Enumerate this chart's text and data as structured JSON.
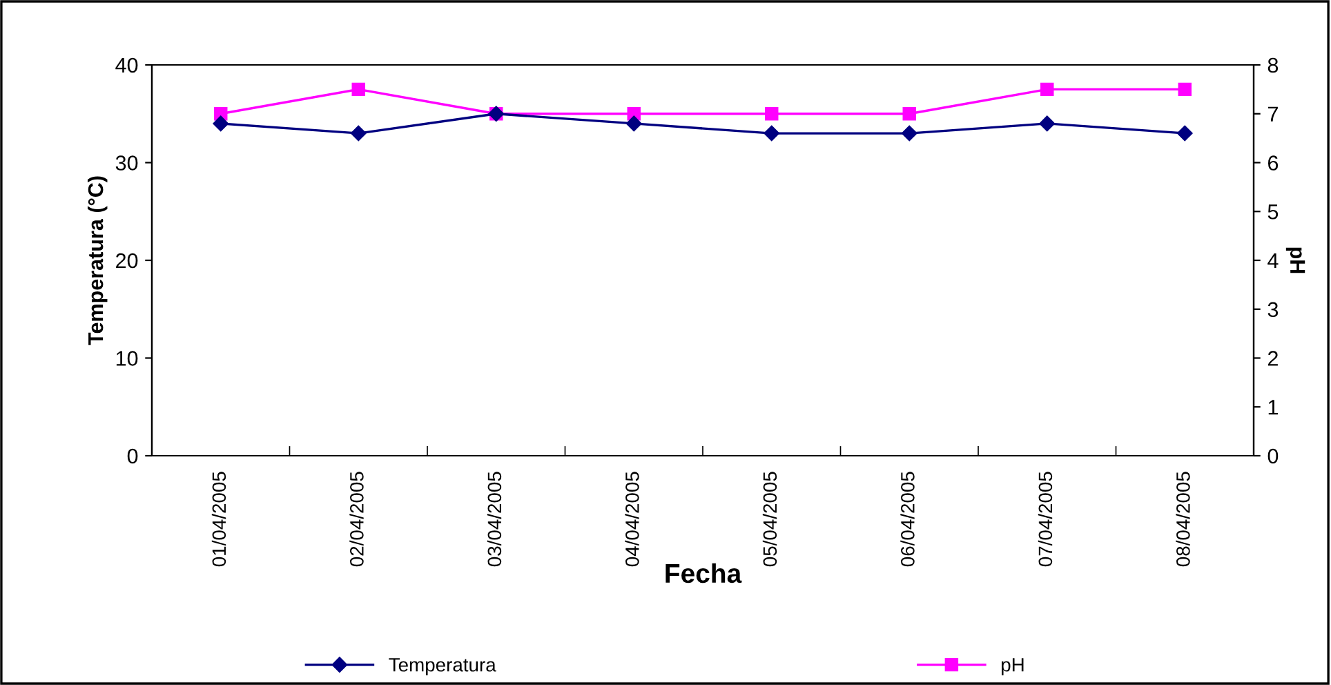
{
  "chart_data": {
    "type": "line",
    "xlabel": "Fecha",
    "ylabel": "Temperatura (°C)",
    "y2label": "pH",
    "categories": [
      "01/04/2005",
      "02/04/2005",
      "03/04/2005",
      "04/04/2005",
      "05/04/2005",
      "06/04/2005",
      "07/04/2005",
      "08/04/2005"
    ],
    "series": [
      {
        "name": "Temperatura",
        "color": "#000080",
        "marker": "diamond",
        "values": [
          34,
          33,
          35,
          34,
          33,
          33,
          34,
          33
        ]
      },
      {
        "name": "pH",
        "color": "#ff00ff",
        "marker": "square",
        "axis": "y2",
        "values": [
          7.0,
          7.5,
          7.0,
          7.0,
          7.0,
          7.0,
          7.5,
          7.5
        ]
      }
    ],
    "ylim": [
      0,
      40
    ],
    "yticks": [
      0,
      10,
      20,
      30,
      40
    ],
    "y2lim": [
      0,
      8
    ],
    "y2ticks": [
      0,
      1,
      2,
      3,
      4,
      5,
      6,
      7,
      8
    ],
    "grid": false,
    "legend": "bottom"
  }
}
